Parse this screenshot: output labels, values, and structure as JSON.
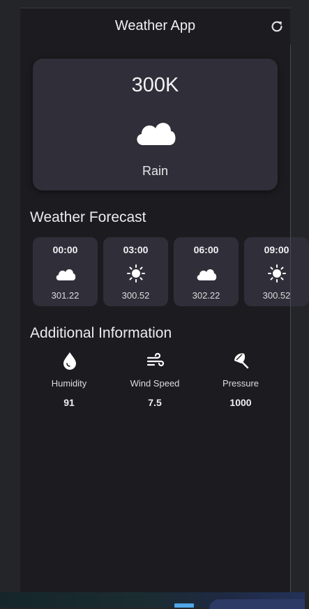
{
  "app": {
    "title": "Weather App"
  },
  "current": {
    "temperature": "300K",
    "condition": "Rain",
    "icon": "cloud-icon"
  },
  "forecast": {
    "title": "Weather Forecast",
    "items": [
      {
        "time": "00:00",
        "temp": "301.22",
        "icon": "cloud-icon"
      },
      {
        "time": "03:00",
        "temp": "300.52",
        "icon": "sun-icon"
      },
      {
        "time": "06:00",
        "temp": "302.22",
        "icon": "cloud-icon"
      },
      {
        "time": "09:00",
        "temp": "300.52",
        "icon": "sun-icon"
      }
    ]
  },
  "additional": {
    "title": "Additional Information",
    "items": [
      {
        "label": "Humidity",
        "value": "91",
        "icon": "water-drop-icon"
      },
      {
        "label": "Wind Speed",
        "value": "7.5",
        "icon": "wind-icon"
      },
      {
        "label": "Pressure",
        "value": "1000",
        "icon": "umbrella-icon"
      }
    ]
  },
  "colors": {
    "background": "#1c1b1f",
    "card": "#302e38",
    "text": "#e8e8ec"
  }
}
